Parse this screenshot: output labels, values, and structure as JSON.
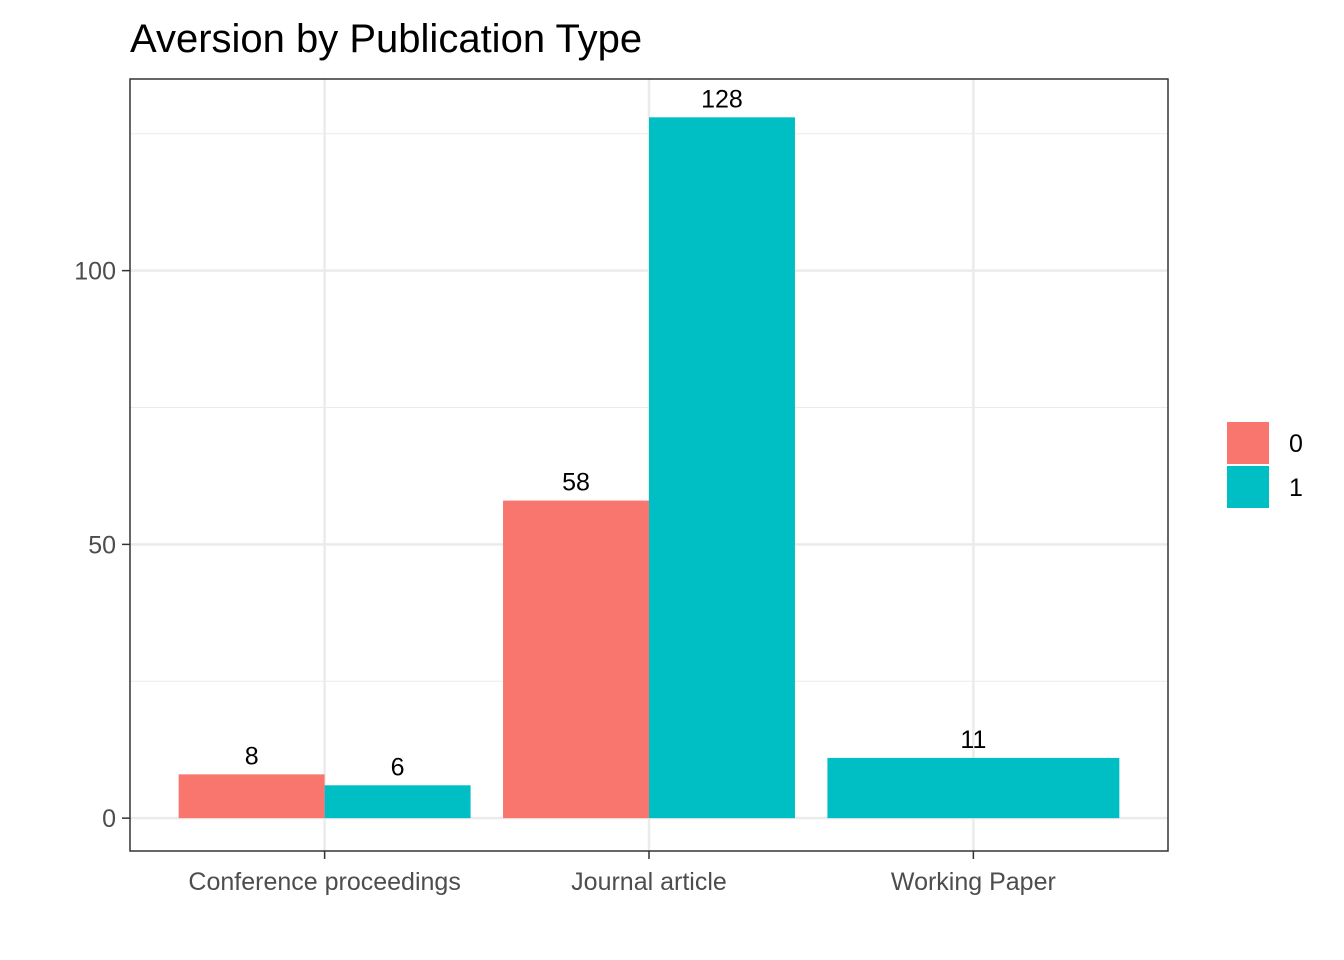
{
  "chart_data": {
    "type": "bar",
    "title": "Aversion by Publication Type",
    "xlabel": "",
    "ylabel": "",
    "categories": [
      "Conference proceedings",
      "Journal article",
      "Working Paper"
    ],
    "series": [
      {
        "name": "0",
        "color": "#F8766D",
        "values": [
          8,
          58,
          null
        ]
      },
      {
        "name": "1",
        "color": "#00BFC4",
        "values": [
          6,
          128,
          11
        ]
      }
    ],
    "ylim": [
      -6,
      135
    ],
    "yticks": [
      0,
      50,
      100
    ],
    "grid": true,
    "legend_position": "right"
  }
}
